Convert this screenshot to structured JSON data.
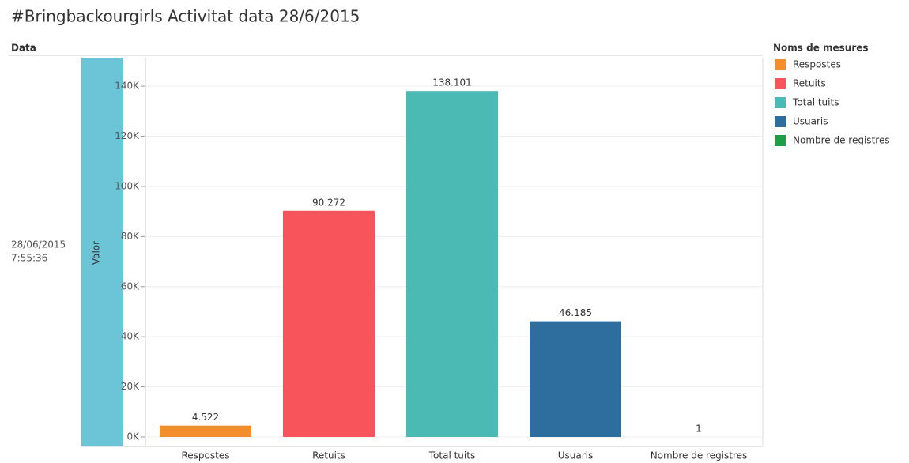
{
  "chart_data": {
    "type": "bar",
    "title": "#Bringbackourgirls Activitat data 28/6/2015",
    "row_header": "Data",
    "row_label": [
      "28/06/2015",
      "7:55:36"
    ],
    "y_label": "Valor",
    "legend_title": "Noms de mesures",
    "legend_position": "right",
    "categories": [
      "Respostes",
      "Retuits",
      "Total tuits",
      "Usuaris",
      "Nombre de registres"
    ],
    "values": [
      4522,
      90272,
      138101,
      46185,
      1
    ],
    "value_labels": [
      "4.522",
      "90.272",
      "138.101",
      "46.185",
      "1"
    ],
    "colors": [
      "#f28e2b",
      "#f7545c",
      "#4bbab4",
      "#2e6e9e",
      "#1f9e48"
    ],
    "ylim": [
      0,
      151400
    ],
    "yticks": [
      {
        "value": 0,
        "label": "0K"
      },
      {
        "value": 20000,
        "label": "20K"
      },
      {
        "value": 40000,
        "label": "40K"
      },
      {
        "value": 60000,
        "label": "60K"
      },
      {
        "value": 80000,
        "label": "80K"
      },
      {
        "value": 100000,
        "label": "100K"
      },
      {
        "value": 120000,
        "label": "120K"
      },
      {
        "value": 140000,
        "label": "140K"
      }
    ],
    "grid": true
  }
}
